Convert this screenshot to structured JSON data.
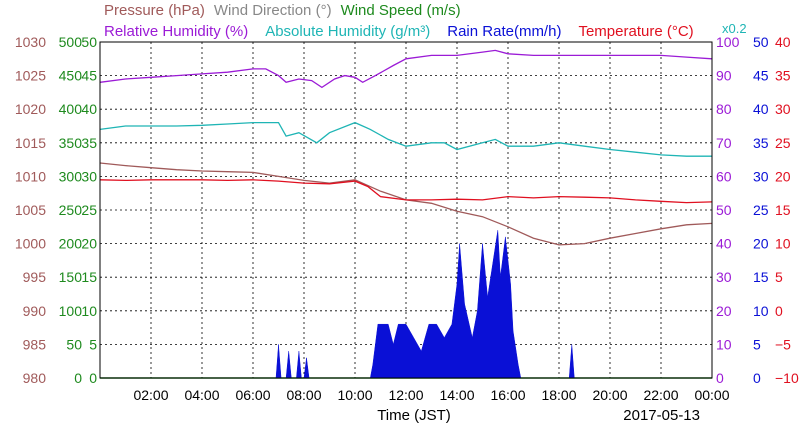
{
  "legend": {
    "row1": [
      {
        "text": "Pressure (hPa)",
        "color": "#a05a5a"
      },
      {
        "text": "Wind Direction (°)",
        "color": "#888888"
      },
      {
        "text": "Wind Speed (m/s)",
        "color": "#1e8a1e"
      }
    ],
    "row2": [
      {
        "text": "Relative Humidity (%)",
        "color": "#9b1bd6"
      },
      {
        "text": "Absolute Humidity (g/m³)",
        "color": "#1fb5b5"
      },
      {
        "text": "Rain Rate(mm/h)",
        "color": "#0a10d6"
      },
      {
        "text": "Temperature (°C)",
        "color": "#e01020"
      }
    ],
    "multiplier": {
      "text": "x0.2",
      "color": "#1fb5b5"
    }
  },
  "xlabel": "Time (JST)",
  "date": "2017-05-13",
  "chart_data": {
    "type": "line",
    "x_ticks": [
      "02:00",
      "04:00",
      "06:00",
      "08:00",
      "10:00",
      "12:00",
      "14:00",
      "16:00",
      "18:00",
      "20:00",
      "22:00",
      "00:00"
    ],
    "xlim_hours": [
      0,
      24
    ],
    "left_axes": [
      {
        "name": "pressure",
        "color": "#a05a5a",
        "labels": [
          "1030",
          "1025",
          "1020",
          "1015",
          "1010",
          "1005",
          "1000",
          "995",
          "990",
          "985",
          "980"
        ]
      },
      {
        "name": "wind",
        "color": "#1e8a1e",
        "labels": [
          "500",
          "450",
          "400",
          "350",
          "300",
          "250",
          "200",
          "150",
          "100",
          "50",
          "0"
        ]
      },
      {
        "name": "wind-speed",
        "color": "#1e8a1e",
        "labels": [
          "50",
          "45",
          "40",
          "35",
          "30",
          "25",
          "20",
          "15",
          "10",
          "5",
          "0"
        ]
      }
    ],
    "right_axes": [
      {
        "name": "humidity",
        "color": "#9b1bd6",
        "labels": [
          "100",
          "90",
          "80",
          "70",
          "60",
          "50",
          "40",
          "30",
          "20",
          "10",
          "0"
        ]
      },
      {
        "name": "rain",
        "color": "#0a10d6",
        "labels": [
          "50",
          "45",
          "40",
          "35",
          "30",
          "25",
          "20",
          "15",
          "10",
          "5",
          "0"
        ]
      },
      {
        "name": "temperature",
        "color": "#e01020",
        "labels": [
          "40",
          "35",
          "30",
          "25",
          "20",
          "15",
          "10",
          "5",
          "0",
          "−5",
          "−10"
        ]
      }
    ],
    "series": [
      {
        "name": "Relative Humidity (%)",
        "color": "#9b1bd6",
        "axis": [
          0,
          100
        ],
        "points": [
          [
            0,
            88
          ],
          [
            1,
            89
          ],
          [
            2,
            89.5
          ],
          [
            3,
            90
          ],
          [
            4,
            90.5
          ],
          [
            5,
            91
          ],
          [
            6,
            92
          ],
          [
            6.5,
            92
          ],
          [
            7,
            90
          ],
          [
            7.3,
            88
          ],
          [
            7.8,
            89
          ],
          [
            8.3,
            88.5
          ],
          [
            8.7,
            86.5
          ],
          [
            9.2,
            89
          ],
          [
            9.6,
            90
          ],
          [
            10,
            89.5
          ],
          [
            10.3,
            88
          ],
          [
            10.8,
            90
          ],
          [
            11.5,
            93
          ],
          [
            12,
            95
          ],
          [
            13,
            96
          ],
          [
            14,
            96
          ],
          [
            15,
            97
          ],
          [
            15.5,
            97.5
          ],
          [
            16,
            96.5
          ],
          [
            17,
            96
          ],
          [
            18,
            96
          ],
          [
            19,
            96
          ],
          [
            20,
            96
          ],
          [
            21,
            96
          ],
          [
            22,
            96
          ],
          [
            23,
            95.5
          ],
          [
            24,
            95
          ]
        ]
      },
      {
        "name": "Absolute Humidity (g/m³)",
        "color": "#1fb5b5",
        "axis": [
          0,
          50
        ],
        "points": [
          [
            0,
            37
          ],
          [
            1,
            37.5
          ],
          [
            2,
            37.5
          ],
          [
            3,
            37.5
          ],
          [
            4,
            37.6
          ],
          [
            5,
            37.8
          ],
          [
            6,
            38
          ],
          [
            7,
            38
          ],
          [
            7.3,
            36
          ],
          [
            7.8,
            36.5
          ],
          [
            8.5,
            35
          ],
          [
            9,
            36.5
          ],
          [
            10,
            38
          ],
          [
            10.6,
            37
          ],
          [
            11.3,
            35.5
          ],
          [
            12,
            34.5
          ],
          [
            13,
            35
          ],
          [
            13.5,
            35
          ],
          [
            14,
            34
          ],
          [
            15,
            35
          ],
          [
            15.5,
            35.5
          ],
          [
            16,
            34.5
          ],
          [
            17,
            34.5
          ],
          [
            18,
            35
          ],
          [
            19,
            34.5
          ],
          [
            20,
            34
          ],
          [
            21,
            33.6
          ],
          [
            22,
            33.2
          ],
          [
            23,
            33
          ],
          [
            24,
            33
          ]
        ]
      },
      {
        "name": "Pressure (hPa)",
        "color": "#a05a5a",
        "axis": [
          980,
          1030
        ],
        "points": [
          [
            0,
            1012
          ],
          [
            1,
            1011.6
          ],
          [
            2,
            1011.3
          ],
          [
            3,
            1011
          ],
          [
            4,
            1010.8
          ],
          [
            5,
            1010.7
          ],
          [
            6,
            1010.6
          ],
          [
            7,
            1010
          ],
          [
            8,
            1009.4
          ],
          [
            9,
            1009
          ],
          [
            10,
            1009.5
          ],
          [
            11,
            1007.8
          ],
          [
            12,
            1006.5
          ],
          [
            13,
            1006
          ],
          [
            14,
            1004.8
          ],
          [
            15,
            1004
          ],
          [
            16,
            1002.5
          ],
          [
            17,
            1000.8
          ],
          [
            18,
            999.8
          ],
          [
            19,
            1000
          ],
          [
            20,
            1000.8
          ],
          [
            21,
            1001.5
          ],
          [
            22,
            1002.2
          ],
          [
            23,
            1002.8
          ],
          [
            24,
            1003
          ]
        ]
      },
      {
        "name": "Temperature (°C)",
        "color": "#e01020",
        "axis": [
          -10,
          40
        ],
        "points": [
          [
            0,
            19.5
          ],
          [
            1,
            19.4
          ],
          [
            2,
            19.5
          ],
          [
            3,
            19.5
          ],
          [
            4,
            19.5
          ],
          [
            5,
            19.4
          ],
          [
            6,
            19.5
          ],
          [
            7,
            19.3
          ],
          [
            8,
            19
          ],
          [
            9,
            18.9
          ],
          [
            10,
            19.3
          ],
          [
            10.5,
            18.5
          ],
          [
            11,
            17
          ],
          [
            12,
            16.5
          ],
          [
            13,
            16.5
          ],
          [
            14,
            16.6
          ],
          [
            15,
            16.5
          ],
          [
            16,
            17
          ],
          [
            17,
            16.8
          ],
          [
            18,
            17
          ],
          [
            19,
            16.9
          ],
          [
            20,
            16.8
          ],
          [
            21,
            16.5
          ],
          [
            22,
            16.3
          ],
          [
            23,
            16.1
          ],
          [
            24,
            16.2
          ]
        ]
      },
      {
        "name": "Rain Rate(mm/h)",
        "color": "#0a10d6",
        "axis": [
          0,
          50
        ],
        "fill": true,
        "points": [
          [
            6.9,
            0
          ],
          [
            7.0,
            5
          ],
          [
            7.1,
            0
          ],
          [
            7.3,
            0
          ],
          [
            7.4,
            4
          ],
          [
            7.5,
            0
          ],
          [
            7.7,
            0
          ],
          [
            7.8,
            4
          ],
          [
            7.9,
            0
          ],
          [
            8.0,
            0
          ],
          [
            8.1,
            3
          ],
          [
            8.2,
            0
          ],
          [
            10.6,
            0
          ],
          [
            10.7,
            2
          ],
          [
            10.9,
            8
          ],
          [
            11.3,
            8
          ],
          [
            11.5,
            5
          ],
          [
            11.7,
            8
          ],
          [
            12,
            8
          ],
          [
            12.3,
            6
          ],
          [
            12.6,
            4
          ],
          [
            12.9,
            8
          ],
          [
            13.2,
            8
          ],
          [
            13.5,
            6
          ],
          [
            13.8,
            8
          ],
          [
            14.0,
            14
          ],
          [
            14.1,
            20
          ],
          [
            14.3,
            11
          ],
          [
            14.6,
            6
          ],
          [
            14.8,
            10
          ],
          [
            15.0,
            20
          ],
          [
            15.2,
            12
          ],
          [
            15.4,
            17
          ],
          [
            15.6,
            22
          ],
          [
            15.7,
            15
          ],
          [
            15.9,
            21
          ],
          [
            16.1,
            14
          ],
          [
            16.2,
            7
          ],
          [
            16.4,
            2
          ],
          [
            16.5,
            0
          ],
          [
            18.4,
            0
          ],
          [
            18.5,
            5
          ],
          [
            18.6,
            0
          ]
        ]
      }
    ]
  }
}
